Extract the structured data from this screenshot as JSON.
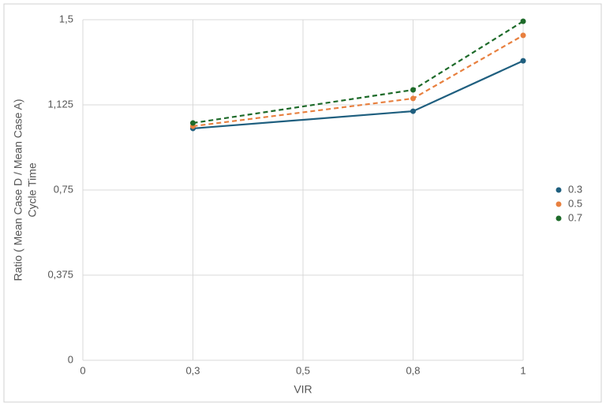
{
  "chart_data": {
    "type": "line",
    "y_label": [
      "Ratio ( Mean Case D / Mean Case A)",
      "Cycle Time"
    ],
    "x_label": "VIR",
    "categories": [
      "0",
      "0,3",
      "0,5",
      "0,8",
      "1"
    ],
    "connect_gaps": true,
    "series": [
      {
        "name": "0.3",
        "color": "#1f5f7f",
        "dashed": false,
        "values": [
          null,
          1.021,
          null,
          1.097,
          1.319
        ]
      },
      {
        "name": "0.5",
        "color": "#e8803f",
        "dashed": true,
        "values": [
          null,
          1.031,
          null,
          1.153,
          1.431
        ]
      },
      {
        "name": "0.7",
        "color": "#1e6b2a",
        "dashed": true,
        "values": [
          null,
          1.045,
          null,
          1.191,
          1.493
        ]
      }
    ],
    "ylim": [
      0,
      1.5
    ],
    "yticks": [
      0,
      {
        "value": 0.375,
        "label": "0,375"
      },
      {
        "value": 0.75,
        "label": "0,75"
      },
      {
        "value": 1.125,
        "label": "1,125"
      },
      {
        "value": 1.5,
        "label": "1,5"
      }
    ],
    "grid": true,
    "legend": "right"
  }
}
